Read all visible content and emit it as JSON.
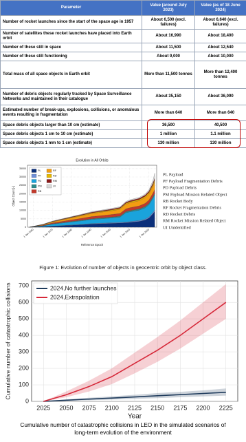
{
  "table": {
    "header": [
      "Parameter",
      "Value (around July 2023)",
      "Value (as of 18 June 2024)"
    ],
    "rows": [
      [
        "Number of rocket launches since the start of the space age in 1957",
        "About 6,500 (excl. failures)",
        "About 6,640 (excl. failures)"
      ],
      [
        "Number of satellites these rocket launches have placed into Earth orbit",
        "About 16,990",
        "About 18,400"
      ],
      [
        "Number of these still in space",
        "About 11,500",
        "About 12,540"
      ],
      [
        "Number of these still functioning",
        "About 9,000",
        "About 10,000"
      ],
      [
        "Total mass of all space objects in Earth orbit",
        "More than 11,500 tonnes",
        "More than 12,400 tonnes"
      ],
      [
        "Number of debris objects regularly tracked by Space Surveillance Networks and maintained in their catalogue",
        "About 35,150",
        "About 36,090"
      ],
      [
        "Estimated number of break-ups, explosions, collisions, or anomalous events resulting in fragmentation",
        "More than 640",
        "More than 640"
      ],
      [
        "Space debris objects larger than 10 cm (estimate)",
        "36,500",
        "40,500"
      ],
      [
        "Space debris objects 1 cm to 10 cm (estimate)",
        "1 million",
        "1.1 million"
      ],
      [
        "Space debris objects 1 mm to 1 cm (estimate)",
        "130 million",
        "130 million"
      ]
    ]
  },
  "chart_data": [
    {
      "type": "stacked_area",
      "title": "Evolution in All Orbits",
      "x_label": "Reference Epoch",
      "y_label": "Object Count [-]",
      "x": [
        1958,
        1965,
        1970,
        1975,
        1980,
        1985,
        1990,
        1995,
        2000,
        2005,
        2008,
        2010,
        2015,
        2018,
        2020,
        2022,
        2023
      ],
      "xlim": [
        1957,
        2024
      ],
      "xticks": [
        {
          "value": 1960,
          "label": "1 Jan 1960"
        },
        {
          "value": 1970,
          "label": "1 Jan 1970"
        },
        {
          "value": 1980,
          "label": "1 Jan 1980"
        },
        {
          "value": 1990,
          "label": "1 Jan 1990"
        },
        {
          "value": 2000,
          "label": "1 Jan 2000"
        },
        {
          "value": 2010,
          "label": "1 Jan 2010"
        },
        {
          "value": 2020,
          "label": "1 Jan 2020"
        }
      ],
      "ylim": [
        0,
        37000
      ],
      "yticks": [
        0,
        5000,
        10000,
        15000,
        20000,
        25000,
        30000,
        35000
      ],
      "grid": true,
      "series": [
        {
          "name": "PL",
          "color": "#0b2f7a",
          "values": [
            20,
            300,
            600,
            900,
            1200,
            1500,
            1900,
            2100,
            2300,
            2500,
            2700,
            2900,
            3500,
            4300,
            5500,
            8000,
            9500
          ]
        },
        {
          "name": "PF",
          "color": "#6f8fd8",
          "values": [
            0,
            0,
            50,
            100,
            150,
            200,
            250,
            300,
            350,
            400,
            400,
            450,
            500,
            550,
            600,
            700,
            800
          ]
        },
        {
          "name": "PD",
          "color": "#1aa3dc",
          "values": [
            0,
            500,
            1200,
            1500,
            1800,
            2100,
            2400,
            2600,
            2800,
            3100,
            5500,
            5800,
            6200,
            6700,
            7300,
            8500,
            9000
          ]
        },
        {
          "name": "PM",
          "color": "#2e8b8b",
          "values": [
            0,
            100,
            200,
            300,
            350,
            400,
            450,
            500,
            550,
            600,
            650,
            700,
            750,
            800,
            850,
            900,
            950
          ]
        },
        {
          "name": "RB",
          "color": "#c0392b",
          "values": [
            10,
            300,
            500,
            700,
            900,
            1100,
            1300,
            1400,
            1500,
            1600,
            1700,
            1750,
            1800,
            1900,
            2000,
            2100,
            2200
          ]
        },
        {
          "name": "RF",
          "color": "#f39c12",
          "values": [
            0,
            300,
            600,
            900,
            1200,
            1500,
            1800,
            2000,
            2200,
            2500,
            2700,
            2900,
            3100,
            3400,
            3700,
            4200,
            4800
          ]
        },
        {
          "name": "RD",
          "color": "#e6b800",
          "values": [
            0,
            100,
            200,
            250,
            300,
            350,
            400,
            450,
            500,
            550,
            600,
            650,
            700,
            750,
            800,
            900,
            1000
          ]
        },
        {
          "name": "RM",
          "color": "#8b1a1a",
          "values": [
            0,
            100,
            200,
            250,
            300,
            350,
            400,
            450,
            500,
            550,
            600,
            650,
            700,
            750,
            800,
            900,
            1000
          ]
        },
        {
          "name": "UI",
          "color": "#d9d9d9",
          "values": [
            0,
            50,
            100,
            150,
            200,
            250,
            300,
            350,
            400,
            450,
            500,
            550,
            600,
            700,
            800,
            1500,
            3000
          ]
        }
      ],
      "class_legend": [
        "PL Payload",
        "PF Payload Fragmentation Debris",
        "PD Payload Debris",
        "PM Payload Mission Related Object",
        "RB Rocket Body",
        "RF Rocket Fragmentation Debris",
        "RD Rocket Debris",
        "RM Rocket Mission Related Object",
        "UI Unidentified"
      ],
      "caption": "Figure 1: Evolution of number of objects in geocentric orbit by object class."
    },
    {
      "type": "line",
      "x_label": "Year",
      "y_label": "Cumulative number of catastrophic collisions",
      "x": [
        2025,
        2050,
        2075,
        2100,
        2125,
        2150,
        2175,
        2200,
        2225
      ],
      "xlim": [
        2012,
        2238
      ],
      "xticks": [
        2025,
        2050,
        2075,
        2100,
        2125,
        2150,
        2175,
        2200,
        2225
      ],
      "ylim": [
        0,
        730
      ],
      "yticks": [
        0,
        100,
        200,
        300,
        400,
        500,
        600,
        700
      ],
      "grid": true,
      "legend": "top-left",
      "series": [
        {
          "name": "2024,No further launches",
          "color": "#1f3b5c",
          "values": [
            0,
            7,
            14,
            20,
            27,
            34,
            41,
            48,
            55
          ],
          "lower": [
            0,
            3,
            7,
            11,
            15,
            20,
            25,
            30,
            35
          ],
          "upper": [
            0,
            12,
            22,
            30,
            40,
            50,
            58,
            67,
            78
          ]
        },
        {
          "name": "2024,Extrapolation",
          "color": "#d62839",
          "values": [
            0,
            40,
            90,
            150,
            230,
            310,
            400,
            500,
            600
          ],
          "lower": [
            0,
            25,
            60,
            105,
            170,
            240,
            320,
            410,
            500
          ],
          "upper": [
            0,
            60,
            125,
            200,
            295,
            390,
            490,
            600,
            710
          ]
        }
      ],
      "caption": "Cumulative number of catastrophic collisions in LEO in the simulated scenarios of long-term evolution of the environment"
    }
  ]
}
